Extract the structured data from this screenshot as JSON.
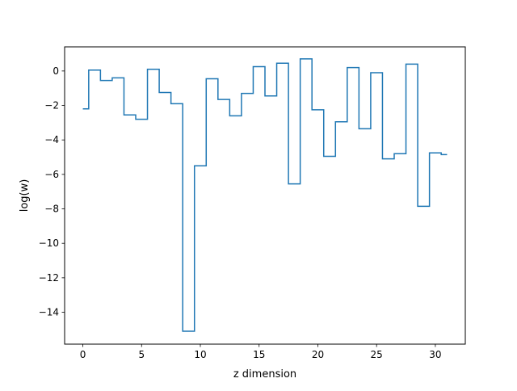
{
  "chart_data": {
    "type": "line",
    "drawstyle": "steps-mid",
    "title": "",
    "xlabel": "z dimension",
    "ylabel": "log(w)",
    "xlim": [
      -1.55,
      32.55
    ],
    "ylim": [
      -15.85,
      1.4
    ],
    "xticks": [
      0,
      5,
      10,
      15,
      20,
      25,
      30
    ],
    "yticks": [
      0,
      -2,
      -4,
      -6,
      -8,
      -10,
      -12,
      -14
    ],
    "grid": false,
    "legend": "none",
    "series": [
      {
        "color": "#1f77b4",
        "x": [
          0,
          1,
          2,
          3,
          4,
          5,
          6,
          7,
          8,
          9,
          10,
          11,
          12,
          13,
          14,
          15,
          16,
          17,
          18,
          19,
          20,
          21,
          22,
          23,
          24,
          25,
          26,
          27,
          28,
          29,
          30,
          31
        ],
        "y": [
          -2.2,
          0.05,
          -0.55,
          -0.4,
          -2.55,
          -2.8,
          0.1,
          -1.25,
          -1.9,
          -15.1,
          -5.5,
          -0.45,
          -1.65,
          -2.6,
          -1.3,
          0.25,
          -1.45,
          0.45,
          -6.55,
          0.7,
          -2.25,
          -4.95,
          -2.95,
          0.2,
          -3.35,
          -0.1,
          -5.1,
          -4.8,
          0.4,
          -7.85,
          -4.75,
          -4.85
        ]
      }
    ]
  }
}
